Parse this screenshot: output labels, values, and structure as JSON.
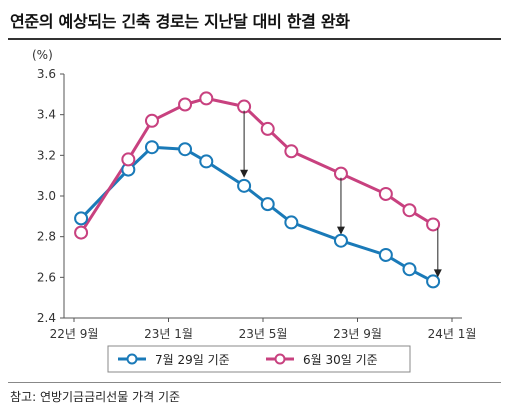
{
  "header": {
    "title": "연준의 예상되는 긴축 경로는 지난달 대비 한결 완화",
    "unit": "(%)"
  },
  "footer": {
    "source": "참고: 연방기금금리선물 가격 기준"
  },
  "colors": {
    "series_jul": "#1a7ab8",
    "series_jun": "#c8417f",
    "arrows": "#222222"
  },
  "chart_data": {
    "type": "line",
    "ylim": [
      2.4,
      3.6
    ],
    "yticks": [
      "2.4",
      "2.6",
      "2.8",
      "3.0",
      "3.2",
      "3.4",
      "3.6"
    ],
    "xlim": [
      0,
      16
    ],
    "xticks": [
      {
        "x": 0,
        "label": "22년 9월"
      },
      {
        "x": 4,
        "label": "23년 1월"
      },
      {
        "x": 8,
        "label": "23년 5월"
      },
      {
        "x": 12,
        "label": "23년 9월"
      },
      {
        "x": 16,
        "label": "24년 1월"
      }
    ],
    "grid": false,
    "legend_position": "bottom",
    "series": [
      {
        "name": "7월 29일 기준",
        "color": "#1a7ab8",
        "x": [
          0.3,
          2.3,
          3.3,
          4.7,
          5.6,
          7.2,
          8.2,
          9.2,
          11.3,
          13.2,
          14.2,
          15.2
        ],
        "values": [
          2.89,
          3.13,
          3.24,
          3.23,
          3.17,
          3.05,
          2.96,
          2.87,
          2.78,
          2.71,
          2.64,
          2.58
        ]
      },
      {
        "name": "6월 30일 기준",
        "color": "#c8417f",
        "x": [
          0.3,
          2.3,
          3.3,
          4.7,
          5.6,
          7.2,
          8.2,
          9.2,
          11.3,
          13.2,
          14.2,
          15.2
        ],
        "values": [
          2.82,
          3.18,
          3.37,
          3.45,
          3.48,
          3.44,
          3.33,
          3.22,
          3.11,
          3.01,
          2.93,
          2.86
        ]
      }
    ],
    "annotations": [
      {
        "type": "arrow",
        "x": 7.2,
        "from": 3.42,
        "to": 3.09
      },
      {
        "type": "arrow",
        "x": 11.3,
        "from": 3.09,
        "to": 2.81
      },
      {
        "type": "arrow",
        "x": 15.4,
        "from": 2.84,
        "to": 2.6
      }
    ]
  }
}
